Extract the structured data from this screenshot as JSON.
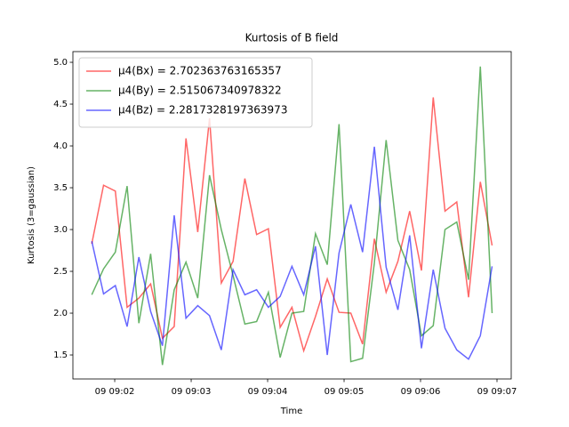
{
  "chart_data": {
    "type": "line",
    "title": "Kurtosis of B field",
    "x_label": "Time",
    "y_label": "Kurtosis (3=gaussian)",
    "x": [
      1.7,
      1.854,
      2.008,
      2.162,
      2.316,
      2.47,
      2.624,
      2.778,
      2.932,
      3.086,
      3.24,
      3.394,
      3.548,
      3.702,
      3.856,
      4.01,
      4.164,
      4.318,
      4.472,
      4.626,
      4.78,
      4.934,
      5.088,
      5.242,
      5.396,
      5.55,
      5.704,
      5.858,
      6.012,
      6.166,
      6.32,
      6.474,
      6.628,
      6.782,
      6.936
    ],
    "series": [
      {
        "name": "μ4(Bx) = 2.702363763165357",
        "color": "#ff0000",
        "values": [
          2.83,
          3.53,
          3.46,
          2.07,
          2.18,
          2.35,
          1.7,
          1.84,
          4.09,
          2.97,
          4.33,
          2.36,
          2.62,
          3.61,
          2.94,
          3.01,
          1.83,
          2.07,
          1.55,
          1.96,
          2.41,
          2.01,
          2.0,
          1.63,
          2.89,
          2.25,
          2.62,
          3.22,
          2.51,
          4.58,
          3.22,
          3.33,
          2.19,
          3.57,
          2.81
        ]
      },
      {
        "name": "μ4(By) = 2.515067340978322",
        "color": "#008000",
        "values": [
          2.22,
          2.53,
          2.73,
          3.52,
          1.88,
          2.71,
          1.38,
          2.28,
          2.61,
          2.18,
          3.65,
          3.0,
          2.45,
          1.87,
          1.9,
          2.25,
          1.47,
          2.0,
          2.02,
          2.95,
          2.58,
          4.26,
          1.42,
          1.46,
          2.6,
          4.07,
          2.87,
          2.52,
          1.73,
          1.85,
          3.0,
          3.09,
          2.4,
          4.95,
          2.0
        ]
      },
      {
        "name": "μ4(Bz) = 2.2817328197363973",
        "color": "#0000ff",
        "values": [
          2.86,
          2.23,
          2.33,
          1.84,
          2.67,
          2.02,
          1.61,
          3.17,
          1.94,
          2.09,
          1.97,
          1.56,
          2.52,
          2.22,
          2.28,
          2.07,
          2.2,
          2.56,
          2.22,
          2.8,
          1.5,
          2.72,
          3.3,
          2.73,
          3.99,
          2.55,
          2.04,
          2.93,
          1.58,
          2.52,
          1.82,
          1.56,
          1.45,
          1.73,
          2.56
        ]
      }
    ],
    "xlim": [
      1.453,
      7.186
    ],
    "xticks": [
      {
        "value": 2,
        "label": "09 09:02"
      },
      {
        "value": 3,
        "label": "09 09:03"
      },
      {
        "value": 4,
        "label": "09 09:04"
      },
      {
        "value": 5,
        "label": "09 09:05"
      },
      {
        "value": 6,
        "label": "09 09:06"
      },
      {
        "value": 7,
        "label": "09 09:07"
      }
    ],
    "ylim": [
      1.213,
      5.128
    ],
    "yticks": [
      1.5,
      {
        "value": 2,
        "label": "2.0"
      },
      2.5,
      {
        "value": 3,
        "label": "3.0"
      },
      3.5,
      {
        "value": 4,
        "label": "4.0"
      },
      4.5,
      {
        "value": 5,
        "label": "5.0"
      }
    ],
    "legend": "upper left",
    "opacity": 0.6
  }
}
